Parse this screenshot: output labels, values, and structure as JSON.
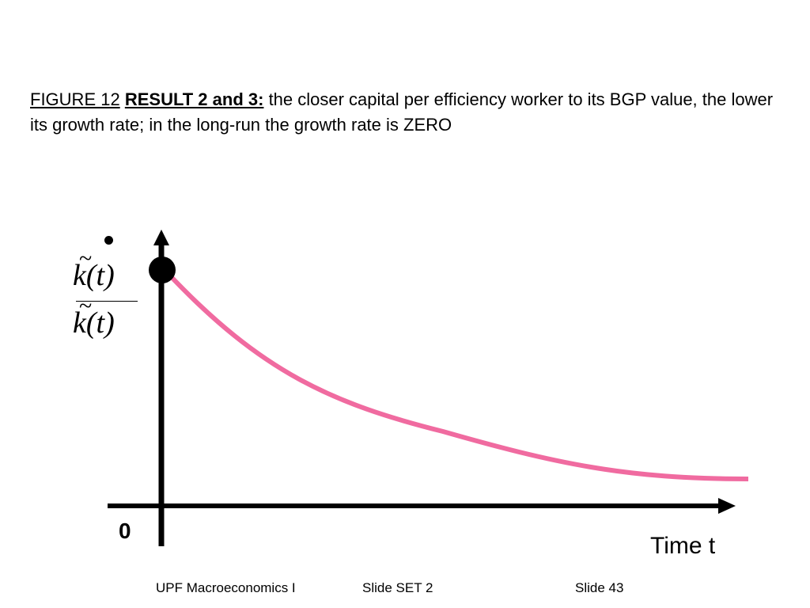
{
  "title": {
    "figure": "FIGURE 12",
    "result": "RESULT 2 and 3:",
    "text": " the closer capital per efficiency worker to its BGP value, the lower its growth rate; in the long-run the growth rate is ZERO"
  },
  "yaxis": {
    "numerator": "k(t)",
    "denominator": "k(t)",
    "tilde": "~"
  },
  "xaxis": {
    "origin_label": "0",
    "label": "Time t"
  },
  "colors": {
    "curve": "#f06ba0",
    "axes": "#000000"
  },
  "footer": {
    "course": "UPF Macroeconomics I",
    "set": "Slide SET 2",
    "slide": "Slide 43"
  }
}
